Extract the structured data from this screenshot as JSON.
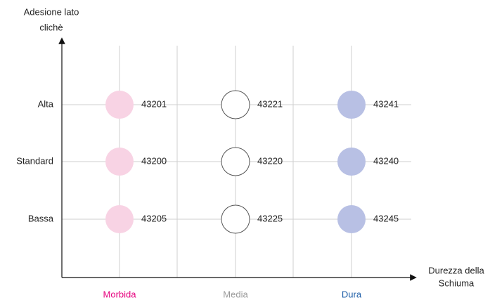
{
  "y_axis_title": [
    "Adesione lato",
    "clichè"
  ],
  "x_axis_title": [
    "Durezza della",
    "Schiuma"
  ],
  "rows": [
    "Alta",
    "Standard",
    "Bassa"
  ],
  "columns": [
    {
      "label": "Morbida",
      "color": "#e6007e",
      "fill": "#f8d3e4",
      "stroke": "none"
    },
    {
      "label": "Media",
      "color": "#9a9a9a",
      "fill": "#ffffff",
      "stroke": "#555555"
    },
    {
      "label": "Dura",
      "color": "#1f5fa8",
      "fill": "#b8c0e4",
      "stroke": "none"
    }
  ],
  "cells": [
    [
      "43201",
      "43221",
      "43241"
    ],
    [
      "43200",
      "43220",
      "43240"
    ],
    [
      "43205",
      "43225",
      "43245"
    ]
  ]
}
